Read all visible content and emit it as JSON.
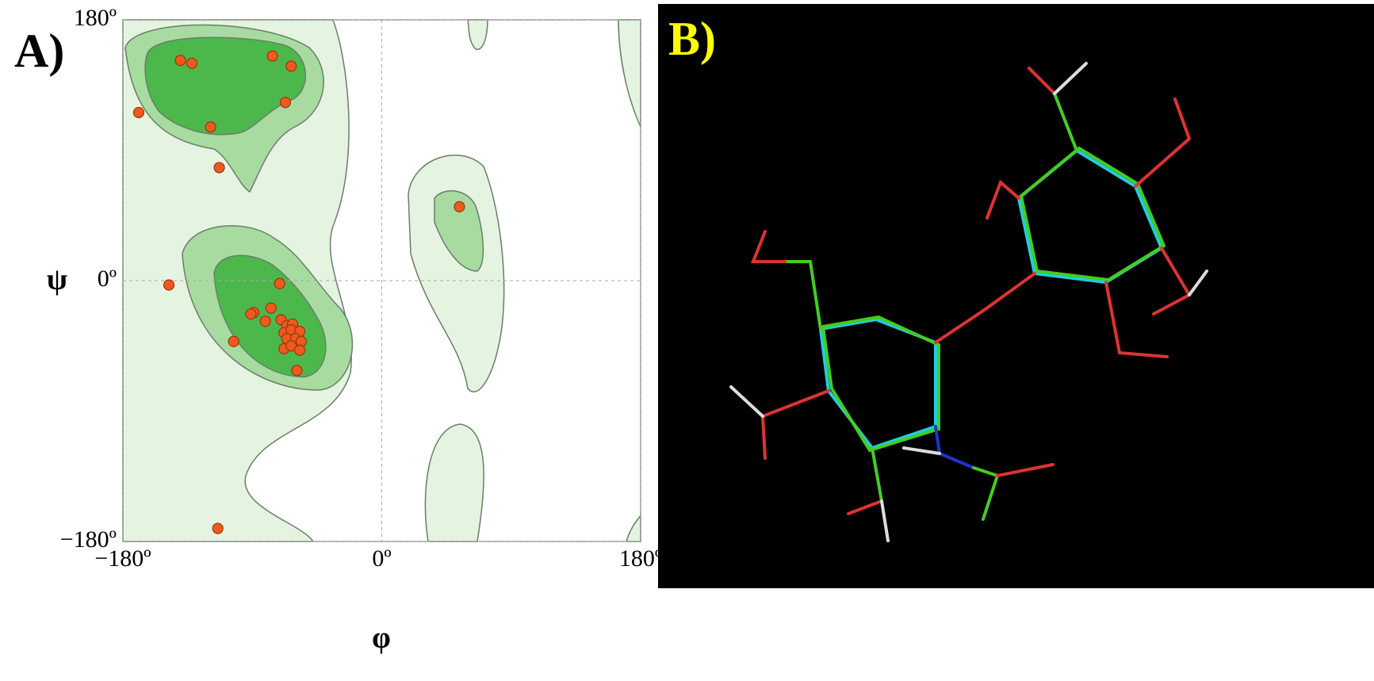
{
  "chart_data": {
    "type": "scatter",
    "panel_label": "A)",
    "x_label": "φ",
    "y_label": "ψ",
    "x": [
      -140,
      -132,
      -76,
      -63,
      -67,
      -119,
      -169,
      -113,
      54,
      -148,
      -71,
      -89,
      -77,
      -91,
      -81,
      -70,
      -66,
      -62,
      -68,
      -63,
      -57,
      -66,
      -60,
      -56,
      -68,
      -63,
      -57,
      -103,
      -59,
      -114
    ],
    "values": [
      152,
      150,
      155,
      148,
      123,
      106,
      116,
      78,
      51,
      -3,
      -2,
      -22,
      -19,
      -23,
      -28,
      -27,
      -31,
      -30,
      -36,
      -34,
      -35,
      -40,
      -40,
      -42,
      -47,
      -45,
      -48,
      -42,
      -62,
      -171
    ],
    "color": "#ee5a1e",
    "xlim": [
      -180,
      180
    ],
    "ylim": [
      -180,
      180
    ],
    "xticks": [
      {
        "value": -180,
        "label": "−180º"
      },
      {
        "value": 0,
        "label": "0º"
      },
      {
        "value": 180,
        "label": "180º"
      }
    ],
    "yticks": [
      {
        "value": -180,
        "label": "−180º"
      },
      {
        "value": 0,
        "label": "0º"
      },
      {
        "value": 180,
        "label": "180º"
      }
    ],
    "grid": true
  },
  "panel_b": {
    "label": "B)"
  }
}
